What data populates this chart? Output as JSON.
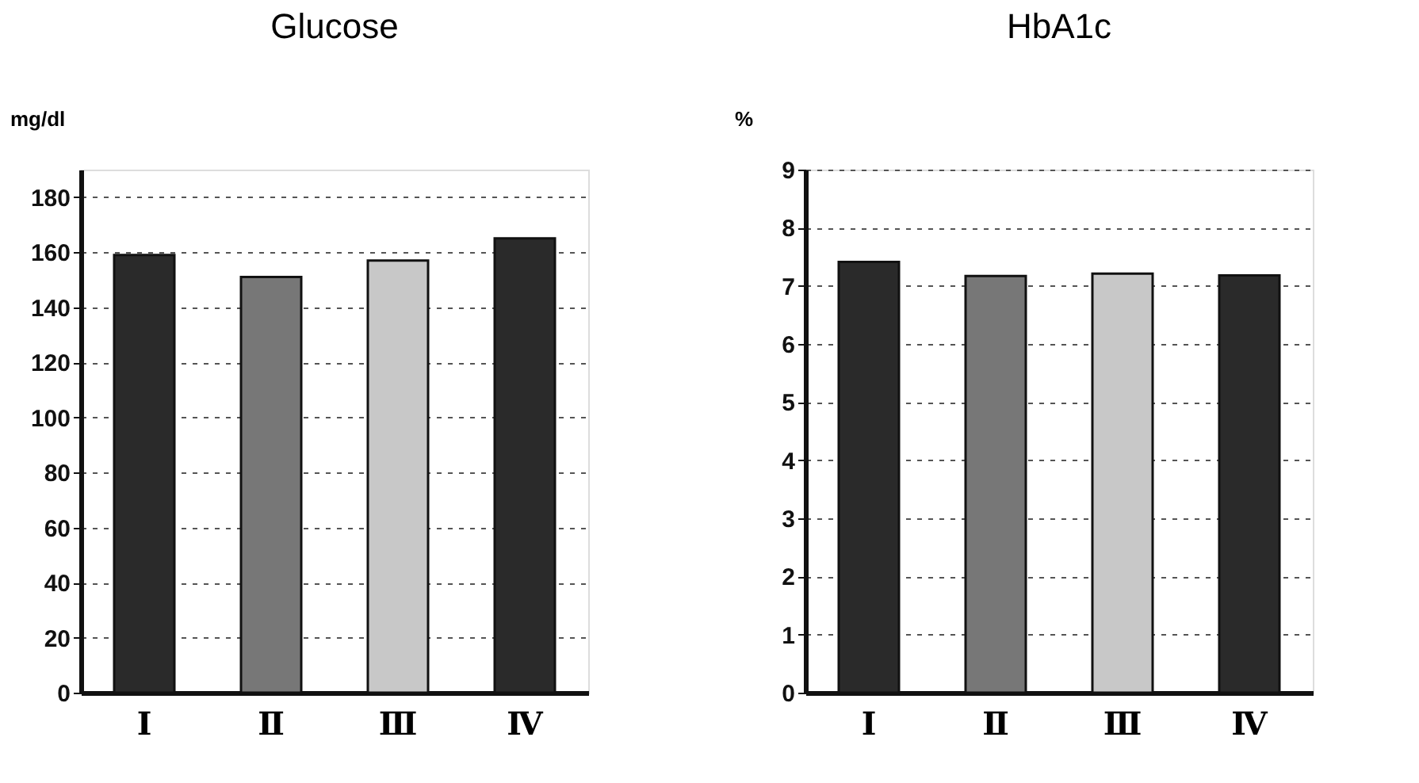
{
  "chart_data": [
    {
      "type": "bar",
      "title": "Glucose",
      "ylabel": "mg/dl",
      "categories": [
        "Ⅰ",
        "Ⅱ",
        "Ⅲ",
        "Ⅳ"
      ],
      "values": [
        159,
        151,
        157,
        165
      ],
      "colors": [
        "#2a2a2a",
        "#777777",
        "#c8c8c8",
        "#2a2a2a"
      ],
      "ylim": [
        0,
        190
      ],
      "yticks": [
        0,
        20,
        40,
        60,
        80,
        100,
        120,
        140,
        160,
        180
      ],
      "grid": "y",
      "legend": false
    },
    {
      "type": "bar",
      "title": "HbA1c",
      "ylabel": "%",
      "categories": [
        "Ⅰ",
        "Ⅱ",
        "Ⅲ",
        "Ⅳ"
      ],
      "values": [
        7.41,
        7.17,
        7.21,
        7.18
      ],
      "colors": [
        "#2a2a2a",
        "#777777",
        "#c8c8c8",
        "#2a2a2a"
      ],
      "ylim": [
        0,
        9
      ],
      "yticks": [
        0,
        1,
        2,
        3,
        4,
        5,
        6,
        7,
        8,
        9
      ],
      "grid": "y",
      "legend": false
    }
  ]
}
